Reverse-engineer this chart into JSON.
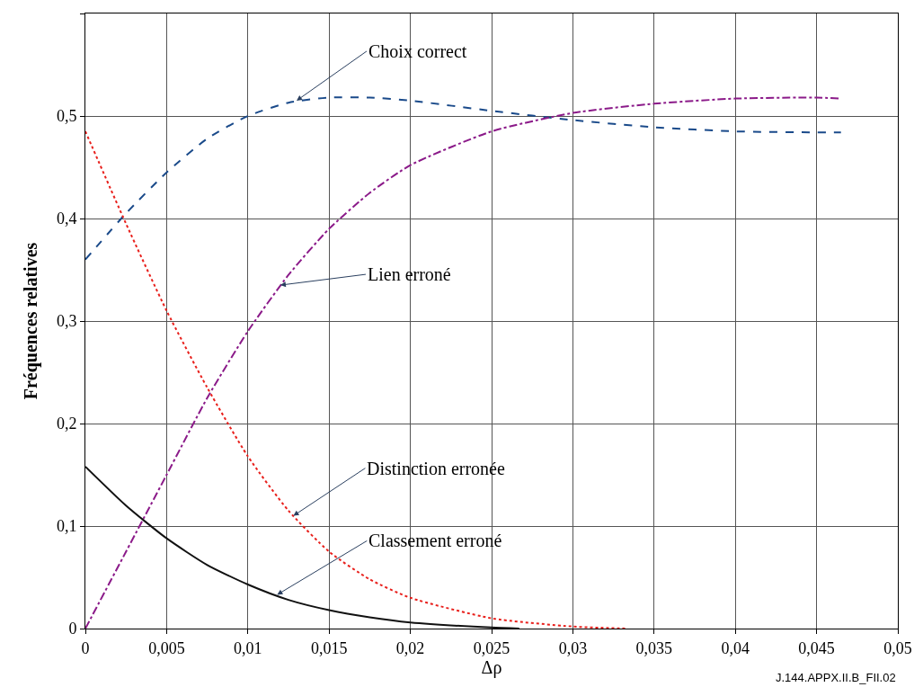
{
  "chart_data": {
    "type": "line",
    "xlabel": "Δρ",
    "ylabel": "Fréquences relatives",
    "xlim": [
      0,
      0.05
    ],
    "ylim": [
      0,
      0.6
    ],
    "xticks": [
      0,
      {
        "value": 0.005,
        "label": "0,005"
      },
      {
        "value": 0.01,
        "label": "0,01"
      },
      {
        "value": 0.015,
        "label": "0,015"
      },
      {
        "value": 0.02,
        "label": "0,02"
      },
      {
        "value": 0.025,
        "label": "0,025"
      },
      {
        "value": 0.03,
        "label": "0,03"
      },
      {
        "value": 0.035,
        "label": "0,035"
      },
      {
        "value": 0.04,
        "label": "0,04"
      },
      {
        "value": 0.045,
        "label": "0,045"
      },
      {
        "value": 0.05,
        "label": "0,05"
      }
    ],
    "yticks": [
      0,
      {
        "value": 0.1,
        "label": "0,1"
      },
      {
        "value": 0.2,
        "label": "0,2"
      },
      {
        "value": 0.3,
        "label": "0,3"
      },
      {
        "value": 0.4,
        "label": "0,4"
      },
      {
        "value": 0.5,
        "label": "0,5"
      },
      {
        "value": 0.6,
        "label": null
      }
    ],
    "grid": true,
    "legend": false,
    "series": [
      {
        "color": "#1a4a8a",
        "line_style": "dashed",
        "x": [
          0,
          0.0025,
          0.005,
          0.0075,
          0.01,
          0.0125,
          0.015,
          0.0175,
          0.02,
          0.025,
          0.03,
          0.035,
          0.04,
          0.045,
          0.0465
        ],
        "values": [
          0.36,
          0.405,
          0.445,
          0.478,
          0.5,
          0.513,
          0.518,
          0.518,
          0.515,
          0.505,
          0.496,
          0.489,
          0.485,
          0.484,
          0.484
        ]
      },
      {
        "color": "#8b1a89",
        "line_style": "dashdot",
        "x": [
          0,
          0.0025,
          0.005,
          0.0075,
          0.01,
          0.0125,
          0.015,
          0.0175,
          0.02,
          0.025,
          0.03,
          0.035,
          0.04,
          0.045,
          0.0465
        ],
        "values": [
          0,
          0.075,
          0.15,
          0.225,
          0.29,
          0.345,
          0.39,
          0.425,
          0.452,
          0.485,
          0.503,
          0.512,
          0.517,
          0.518,
          0.517
        ]
      },
      {
        "color": "#e8201c",
        "line_style": "dotted",
        "x": [
          0,
          0.0025,
          0.005,
          0.0075,
          0.01,
          0.0125,
          0.015,
          0.0175,
          0.02,
          0.025,
          0.03,
          0.0333
        ],
        "values": [
          0.485,
          0.395,
          0.31,
          0.235,
          0.168,
          0.115,
          0.075,
          0.048,
          0.03,
          0.01,
          0.002,
          0
        ]
      },
      {
        "color": "#111111",
        "line_style": "solid",
        "x": [
          0,
          0.0025,
          0.005,
          0.0075,
          0.01,
          0.0125,
          0.015,
          0.0175,
          0.02,
          0.025,
          0.0267
        ],
        "values": [
          0.158,
          0.12,
          0.088,
          0.062,
          0.043,
          0.028,
          0.018,
          0.011,
          0.006,
          0.001,
          0
        ]
      }
    ],
    "annotations": [
      {
        "text": "Choix correct",
        "x": 0.013,
        "y": 0.515
      },
      {
        "text": "Lien erroné",
        "x": 0.012,
        "y": 0.335
      },
      {
        "text": "Distinction erronée",
        "x": 0.0128,
        "y": 0.11
      },
      {
        "text": "Classement erroné",
        "x": 0.0118,
        "y": 0.033
      },
      "J.144.APPX.II.B_FII.02"
    ]
  }
}
